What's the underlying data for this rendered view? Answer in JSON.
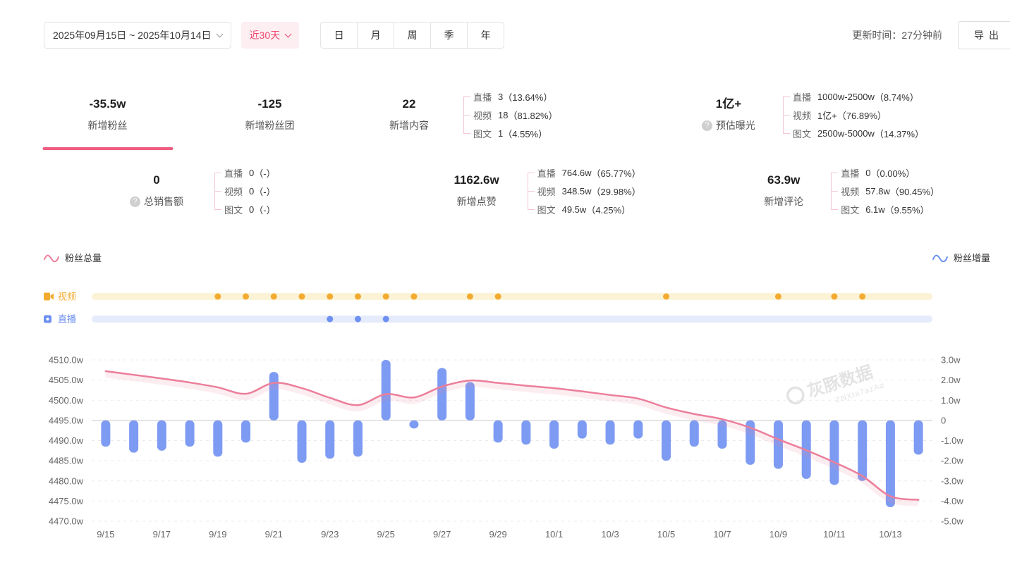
{
  "topbar": {
    "date_range": "2025年09月15日 ~ 2025年10月14日",
    "quick_range": "近30天",
    "period_tabs": [
      "日",
      "月",
      "周",
      "季",
      "年"
    ],
    "update_time": "更新时间：27分钟前",
    "export_label": "导出"
  },
  "metrics": {
    "row1": [
      {
        "value": "-35.5w",
        "label": "新增粉丝",
        "selected": true
      },
      {
        "value": "-125",
        "label": "新增粉丝团"
      },
      {
        "value": "22",
        "label": "新增内容",
        "breakdown": [
          {
            "name": "直播",
            "value": "3",
            "percent": "（13.64%）"
          },
          {
            "name": "视频",
            "value": "18",
            "percent": "（81.82%）"
          },
          {
            "name": "图文",
            "value": "1",
            "percent": "（4.55%）"
          }
        ]
      },
      {
        "value": "1亿+",
        "label": "预估曝光",
        "help": true,
        "breakdown": [
          {
            "name": "直播",
            "value": "1000w-2500w",
            "percent": "（8.74%）"
          },
          {
            "name": "视频",
            "value": "1亿+",
            "percent": "（76.89%）"
          },
          {
            "name": "图文",
            "value": "2500w-5000w",
            "percent": "（14.37%）"
          }
        ]
      }
    ],
    "row2": [
      {
        "value": "0",
        "label": "总销售额",
        "help": true,
        "breakdown": [
          {
            "name": "直播",
            "value": "0",
            "percent": "（-）"
          },
          {
            "name": "视频",
            "value": "0",
            "percent": "（-）"
          },
          {
            "name": "图文",
            "value": "0",
            "percent": "（-）"
          }
        ]
      },
      {
        "value": "1162.6w",
        "label": "新增点赞",
        "breakdown": [
          {
            "name": "直播",
            "value": "764.6w",
            "percent": "（65.77%）"
          },
          {
            "name": "视频",
            "value": "348.5w",
            "percent": "（29.98%）"
          },
          {
            "name": "图文",
            "value": "49.5w",
            "percent": "（4.25%）"
          }
        ]
      },
      {
        "value": "63.9w",
        "label": "新增评论",
        "breakdown": [
          {
            "name": "直播",
            "value": "0",
            "percent": "（0.00%）"
          },
          {
            "name": "视频",
            "value": "57.8w",
            "percent": "（90.45%）"
          },
          {
            "name": "图文",
            "value": "6.1w",
            "percent": "（9.55%）"
          }
        ]
      }
    ]
  },
  "legend": {
    "fans_total": "粉丝总量",
    "fans_delta": "粉丝增量",
    "fans_total_color": "#ec7e9a",
    "fans_delta_color": "#6d90f1"
  },
  "chart_data": {
    "type": "line+bar",
    "x": [
      "9/15",
      "9/16",
      "9/17",
      "9/18",
      "9/19",
      "9/20",
      "9/21",
      "9/22",
      "9/23",
      "9/24",
      "9/25",
      "9/26",
      "9/27",
      "9/28",
      "9/29",
      "9/30",
      "10/1",
      "10/2",
      "10/3",
      "10/4",
      "10/5",
      "10/6",
      "10/7",
      "10/8",
      "10/9",
      "10/10",
      "10/11",
      "10/12",
      "10/13",
      "10/14"
    ],
    "x_tick_labels": [
      "9/15",
      "9/17",
      "9/19",
      "9/21",
      "9/23",
      "9/25",
      "9/27",
      "9/29",
      "10/1",
      "10/3",
      "10/5",
      "10/7",
      "10/9",
      "10/11",
      "10/13"
    ],
    "series": [
      {
        "name": "粉丝总量",
        "type": "line",
        "axis": "left",
        "color": "#ec7e9a",
        "values": [
          4507.2,
          4506.3,
          4505.4,
          4504.4,
          4503.2,
          4501.6,
          4504.3,
          4503.0,
          4500.6,
          4498.8,
          4501.5,
          4500.7,
          4503.4,
          4504.9,
          4504.3,
          4503.6,
          4503.0,
          4502.2,
          4501.3,
          4500.4,
          4498.2,
          4496.6,
          4495.3,
          4493.2,
          4490.3,
          4487.6,
          4484.6,
          4481.2,
          4476.2,
          4475.3
        ]
      },
      {
        "name": "粉丝增量",
        "type": "bar",
        "axis": "right",
        "color": "#7d9bf2",
        "values": [
          -1.3,
          -1.6,
          -1.5,
          -1.3,
          -1.8,
          -1.1,
          2.4,
          -2.1,
          -1.9,
          -1.8,
          3.0,
          -0.4,
          2.6,
          1.9,
          -1.1,
          -1.2,
          -1.4,
          -0.9,
          -1.2,
          -0.9,
          -2.0,
          -1.3,
          -1.4,
          -2.2,
          -2.4,
          -2.9,
          -3.2,
          -3.0,
          -4.3,
          -1.7
        ]
      }
    ],
    "left_axis": {
      "min": 4470,
      "max": 4510,
      "tick_step": 5,
      "unit": "w",
      "ticks": [
        "4510.0w",
        "4505.0w",
        "4500.0w",
        "4495.0w",
        "4490.0w",
        "4485.0w",
        "4480.0w",
        "4475.0w",
        "4470.0w"
      ]
    },
    "right_axis": {
      "min": -5,
      "max": 3,
      "tick_step": 1,
      "unit": "w",
      "ticks": [
        "3.0w",
        "2.0w",
        "1.0w",
        "0",
        "-1.0w",
        "-2.0w",
        "-3.0w",
        "-4.0w",
        "-5.0w"
      ]
    },
    "grid": "dashed-horizontal",
    "event_tracks": [
      {
        "name": "视频",
        "dot_color": "#f2ab30",
        "track_color": "#fcf3d7",
        "days": [
          "9/19",
          "9/20",
          "9/21",
          "9/22",
          "9/23",
          "9/24",
          "9/25",
          "9/26",
          "9/28",
          "9/29",
          "10/5",
          "10/9",
          "10/11",
          "10/12"
        ]
      },
      {
        "name": "直播",
        "dot_color": "#6d90f1",
        "track_color": "#e6ebfc",
        "days": [
          "9/23",
          "9/24",
          "9/25"
        ]
      }
    ],
    "watermark": {
      "title": "灰豚数据",
      "code": "ZNXta7azAd"
    }
  }
}
